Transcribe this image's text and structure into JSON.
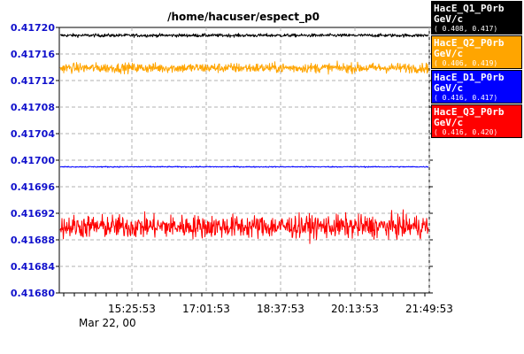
{
  "chart_data": {
    "type": "line",
    "title": "/home/hacuser/espect_p0",
    "ylim": [
      0.4168,
      0.4172
    ],
    "yticks": [
      "0.41680",
      "0.41684",
      "0.41688",
      "0.41692",
      "0.41696",
      "0.41700",
      "0.41704",
      "0.41708",
      "0.41712",
      "0.41716",
      "0.41720"
    ],
    "xticks": [
      "15:25:53",
      "17:01:53",
      "18:37:53",
      "20:13:53",
      "21:49:53"
    ],
    "date_label": "Mar 22, 00",
    "grid": true,
    "legend_position": "right",
    "series": [
      {
        "name": "HacE_Q1_P0rb",
        "unit": "GeV/c",
        "range": "( 0.408,  0.417)",
        "color": "#000000",
        "center": 0.417188,
        "noise": 1.2e-06
      },
      {
        "name": "HacE_Q2_P0rb",
        "unit": "GeV/c",
        "range": "( 0.406,  0.419)",
        "color": "#ffa500",
        "center": 0.417139,
        "noise": 3.6e-06
      },
      {
        "name": "HacE_D1_P0rb",
        "unit": "GeV/c",
        "range": "( 0.416,  0.417)",
        "color": "#0000ff",
        "center": 0.41699,
        "noise": 4e-07
      },
      {
        "name": "HacE_Q3_P0rb",
        "unit": "GeV/c",
        "range": "( 0.416,  0.420)",
        "color": "#ff0000",
        "center": 0.4169,
        "noise": 8.5e-06
      }
    ]
  }
}
